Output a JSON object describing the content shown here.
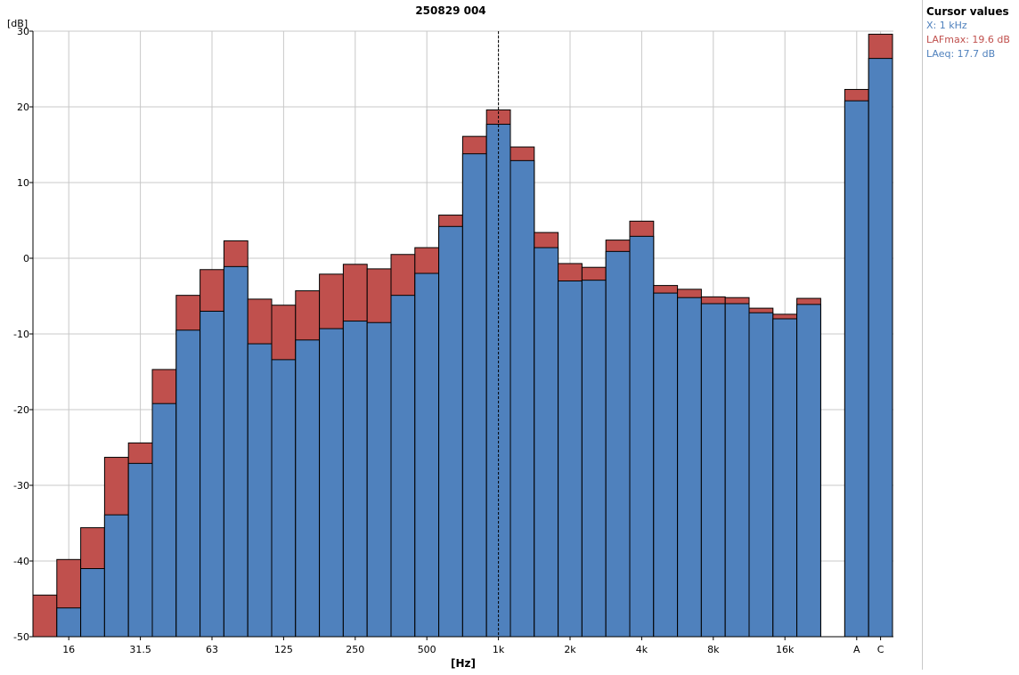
{
  "colors": {
    "laeq": "#4f81bd",
    "lafmax": "#c0504d",
    "cursor_x_text": "#4f81bd",
    "cursor_lafmax_text": "#c0504d",
    "cursor_laeq_text": "#4f81bd",
    "grid": "#c8c8c8",
    "bar_outline": "#000000"
  },
  "cursor_panel": {
    "title": "Cursor values",
    "x_text": "X: 1 kHz",
    "lafmax_text": "LAFmax: 19.6 dB",
    "laeq_text": "LAeq: 17.7 dB"
  },
  "chart_data": {
    "type": "bar",
    "title": "250829 004",
    "xlabel": "[Hz]",
    "ylabel": "[dB]",
    "ylim": [
      -50,
      30
    ],
    "y_ticks": [
      30,
      20,
      10,
      0,
      -10,
      -20,
      -30,
      -40,
      -50
    ],
    "grid": true,
    "stacked_overlay": true,
    "cursor_at": "1k",
    "x_tick_labels": [
      "16",
      "31.5",
      "63",
      "125",
      "250",
      "500",
      "1k",
      "2k",
      "4k",
      "8k",
      "16k",
      "A",
      "C"
    ],
    "categories": [
      "12.5",
      "16",
      "20",
      "25",
      "31.5",
      "40",
      "50",
      "63",
      "80",
      "100",
      "125",
      "160",
      "200",
      "250",
      "315",
      "400",
      "500",
      "630",
      "800",
      "1k",
      "1.25k",
      "1.6k",
      "2k",
      "2.5k",
      "3.15k",
      "4k",
      "5k",
      "6.3k",
      "8k",
      "10k",
      "12.5k",
      "16k",
      "20k",
      "A",
      "C"
    ],
    "series": [
      {
        "name": "LAFmax",
        "values": [
          -44.5,
          -39.8,
          -35.6,
          -26.3,
          -24.4,
          -14.7,
          -4.9,
          -1.5,
          2.3,
          -5.4,
          -6.2,
          -4.3,
          -2.1,
          -0.8,
          -1.4,
          0.5,
          1.4,
          5.7,
          16.1,
          19.6,
          14.7,
          3.4,
          -0.7,
          -1.2,
          2.4,
          4.9,
          -3.6,
          -4.1,
          -5.1,
          -5.2,
          -6.6,
          -7.4,
          -5.3,
          22.3,
          29.6
        ]
      },
      {
        "name": "LAeq",
        "values": [
          null,
          -46.2,
          -41.0,
          -33.9,
          -27.1,
          -19.2,
          -9.5,
          -7.0,
          -1.1,
          -11.3,
          -13.4,
          -10.8,
          -9.3,
          -8.3,
          -8.5,
          -4.9,
          -2.0,
          4.2,
          13.8,
          17.7,
          12.9,
          1.4,
          -3.0,
          -2.9,
          0.9,
          2.9,
          -4.6,
          -5.2,
          -6.0,
          -6.0,
          -7.2,
          -8.0,
          -6.1,
          20.8,
          26.4
        ]
      }
    ]
  }
}
